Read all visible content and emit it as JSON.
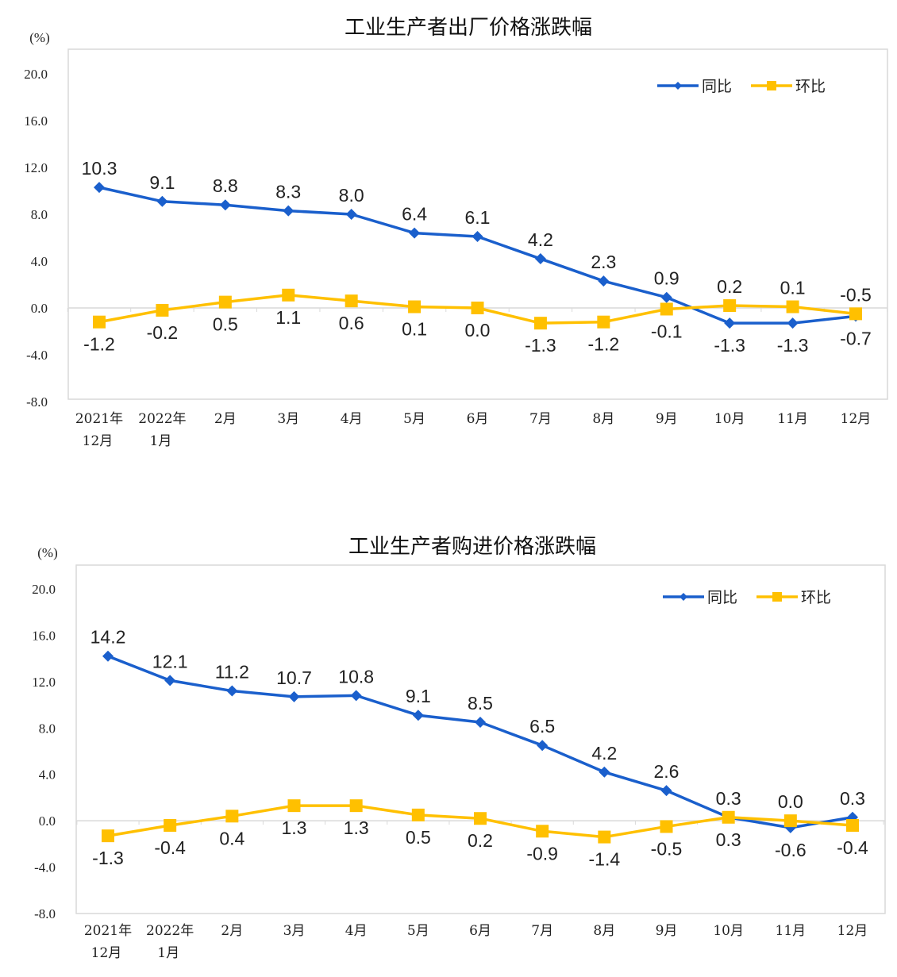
{
  "chart_data": [
    {
      "type": "line",
      "title": "工业生产者出厂价格涨跌幅",
      "ylabel": "(%)",
      "ylim": [
        -8,
        20
      ],
      "yticks": [
        "20.0",
        "16.0",
        "12.0",
        "8.0",
        "4.0",
        "0.0",
        "-4.0",
        "-8.0"
      ],
      "grid": false,
      "legend": "top-right",
      "categories": [
        [
          "2021年",
          "12月"
        ],
        [
          "2022年",
          "1月"
        ],
        [
          "2月"
        ],
        [
          "3月"
        ],
        [
          "4月"
        ],
        [
          "5月"
        ],
        [
          "6月"
        ],
        [
          "7月"
        ],
        [
          "8月"
        ],
        [
          "9月"
        ],
        [
          "10月"
        ],
        [
          "11月"
        ],
        [
          "12月"
        ]
      ],
      "series": [
        {
          "name": "同比",
          "color": "#1a5fcc",
          "marker": "diamond",
          "values": [
            10.3,
            9.1,
            8.8,
            8.3,
            8.0,
            6.4,
            6.1,
            4.2,
            2.3,
            0.9,
            -1.3,
            -1.3,
            -0.7
          ]
        },
        {
          "name": "环比",
          "color": "#ffc000",
          "marker": "square",
          "values": [
            -1.2,
            -0.2,
            0.5,
            1.1,
            0.6,
            0.1,
            0.0,
            -1.3,
            -1.2,
            -0.1,
            0.2,
            0.1,
            -0.5
          ]
        }
      ]
    },
    {
      "type": "line",
      "title": "工业生产者购进价格涨跌幅",
      "ylabel": "(%)",
      "ylim": [
        -8,
        20
      ],
      "yticks": [
        "20.0",
        "16.0",
        "12.0",
        "8.0",
        "4.0",
        "0.0",
        "-4.0",
        "-8.0"
      ],
      "grid": false,
      "legend": "top-right",
      "categories": [
        [
          "2021年",
          "12月"
        ],
        [
          "2022年",
          "1月"
        ],
        [
          "2月"
        ],
        [
          "3月"
        ],
        [
          "4月"
        ],
        [
          "5月"
        ],
        [
          "6月"
        ],
        [
          "7月"
        ],
        [
          "8月"
        ],
        [
          "9月"
        ],
        [
          "10月"
        ],
        [
          "11月"
        ],
        [
          "12月"
        ]
      ],
      "series": [
        {
          "name": "同比",
          "color": "#1a5fcc",
          "marker": "diamond",
          "values": [
            14.2,
            12.1,
            11.2,
            10.7,
            10.8,
            9.1,
            8.5,
            6.5,
            4.2,
            2.6,
            0.3,
            -0.6,
            0.3
          ]
        },
        {
          "name": "环比",
          "color": "#ffc000",
          "marker": "square",
          "values": [
            -1.3,
            -0.4,
            0.4,
            1.3,
            1.3,
            0.5,
            0.2,
            -0.9,
            -1.4,
            -0.5,
            0.3,
            0.0,
            -0.4
          ]
        }
      ]
    }
  ]
}
